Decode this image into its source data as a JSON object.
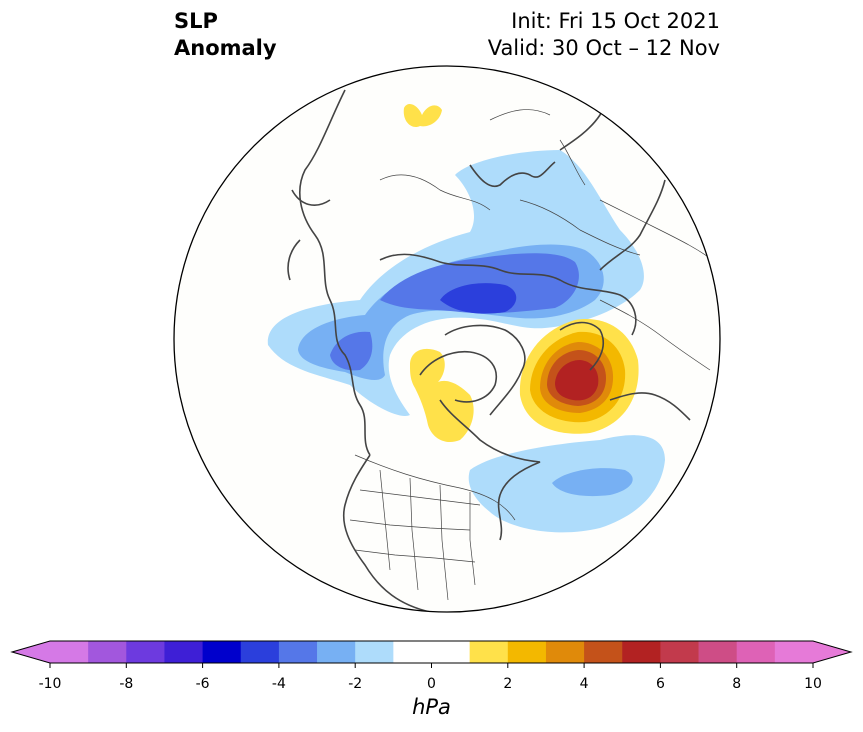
{
  "title": {
    "left_line1": "SLP",
    "left_line2": "Anomaly",
    "right_line1": "Init: Fri 15 Oct 2021",
    "right_line2": "Valid: 30 Oct – 12 Nov"
  },
  "colorbar": {
    "label": "hPa",
    "min": -10,
    "max": 10,
    "step": 1,
    "tick_values": [
      -10,
      -8,
      -6,
      -4,
      -2,
      0,
      2,
      4,
      6,
      8,
      10
    ],
    "extend": "both",
    "colors": [
      "#d579e6",
      "#a257dd",
      "#6d3adf",
      "#3e1fd6",
      "#0000cc",
      "#2b3fdc",
      "#5577e8",
      "#77b0f3",
      "#aedcfb",
      "#ffffff",
      "#ffffff",
      "#ffe14a",
      "#f3b800",
      "#e08a0a",
      "#c4521a",
      "#b22222",
      "#c23a4c",
      "#ce4d86",
      "#de62b6",
      "#e67ad8"
    ],
    "under_color": "#d579e6",
    "over_color": "#e67ad8"
  },
  "map": {
    "projection": "north-polar-stereographic",
    "boundary": "circular",
    "features": [
      "coastlines",
      "country-borders",
      "us-state-borders"
    ],
    "anomaly_features": [
      {
        "name": "negative anomaly Arctic/Siberia",
        "min_value": -5,
        "color": "#2b3fdc"
      },
      {
        "name": "negative anomaly Gulf of Alaska",
        "min_value": -4
      },
      {
        "name": "negative anomaly North Atlantic",
        "min_value": -3
      },
      {
        "name": "positive anomaly Scandinavia / North Sea",
        "max_value": 6,
        "color": "#b22222"
      },
      {
        "name": "positive anomaly Canadian Arctic / Hudson Bay",
        "max_value": 2
      },
      {
        "name": "positive anomaly East Siberia / Bering",
        "max_value": 2
      }
    ]
  }
}
